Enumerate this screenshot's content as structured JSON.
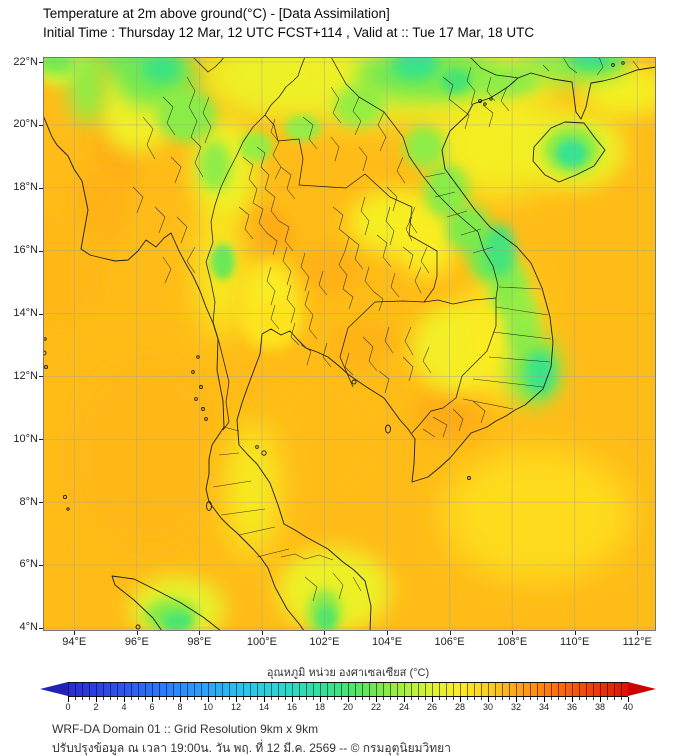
{
  "header": {
    "title": "Temperature at 2m above ground(°C) - [Data Assimilation]",
    "subtitle": "Initial Time : Thursday 12 Mar, 12 UTC FCST+114 , Valid at :: Tue 17 Mar, 18 UTC"
  },
  "footer": {
    "line1": "WRF-DA Domain 01 :: Grid Resolution 9km x 9km",
    "line2": "ปรับปรุงข้อมูล ณ เวลา 19:00น. วัน พฤ. ที่ 12 มี.ค. 2569 -- © กรมอุตุนิยมวิทยา"
  },
  "chart_data": {
    "type": "heatmap",
    "title": "Temperature at 2m above ground(°C) - [Data Assimilation]",
    "axes": {
      "domain": {
        "lon_min": 93.0,
        "lon_max": 112.6,
        "lat_min": 3.9,
        "lat_max": 22.16
      },
      "lon_ticks_deg": [
        94,
        96,
        98,
        100,
        102,
        104,
        106,
        108,
        110,
        112
      ],
      "lon_tick_labels": [
        "94°E",
        "96°E",
        "98°E",
        "100°E",
        "102°E",
        "104°E",
        "106°E",
        "108°E",
        "110°E",
        "112°E"
      ],
      "lat_ticks_deg": [
        22,
        20,
        18,
        16,
        14,
        12,
        10,
        8,
        6,
        4
      ],
      "lat_tick_labels": [
        "22°N",
        "20°N",
        "18°N",
        "16°N",
        "14°N",
        "12°N",
        "10°N",
        "8°N",
        "6°N",
        "4°N"
      ],
      "grid": true,
      "grid_color": "#9aa0a6"
    },
    "colorbar": {
      "label": "อุณหภูมิ หน่วย องศาเซลเซียส (°C)",
      "unit": "°C",
      "min": 0,
      "max": 40,
      "tick_step": 2,
      "tick_labels": [
        "0",
        "2",
        "4",
        "6",
        "8",
        "10",
        "12",
        "14",
        "16",
        "18",
        "20",
        "22",
        "24",
        "26",
        "28",
        "30",
        "32",
        "34",
        "36",
        "38",
        "40"
      ],
      "stops": [
        [
          0,
          "#2a2ad2"
        ],
        [
          2,
          "#2b40e4"
        ],
        [
          4,
          "#2b57f2"
        ],
        [
          6,
          "#2b71fb"
        ],
        [
          8,
          "#2b8cff"
        ],
        [
          10,
          "#29a6fb"
        ],
        [
          12,
          "#28bff2"
        ],
        [
          14,
          "#27cfe2"
        ],
        [
          16,
          "#28dcc4"
        ],
        [
          18,
          "#30e29e"
        ],
        [
          20,
          "#46e472"
        ],
        [
          22,
          "#74e94f"
        ],
        [
          24,
          "#a9f03c"
        ],
        [
          26,
          "#dff42e"
        ],
        [
          28,
          "#fdec20"
        ],
        [
          30,
          "#ffcf1a"
        ],
        [
          32,
          "#ffa815"
        ],
        [
          34,
          "#ff8110"
        ],
        [
          36,
          "#fa5c0b"
        ],
        [
          38,
          "#ef3306"
        ],
        [
          40,
          "#e11002"
        ]
      ],
      "arrow_left_color": "#2222b6",
      "arrow_right_color": "#cf0000"
    },
    "field": {
      "base_temp_c": 31.0,
      "anomalies": [
        [
          95.4,
          19.8,
          0.85,
          1.9,
          31.8
        ],
        [
          94.9,
          17.4,
          0.9,
          1.3,
          31.5
        ],
        [
          93.7,
          15.3,
          1.4,
          1.8,
          31.2
        ],
        [
          96.3,
          9.5,
          2.6,
          3.2,
          31.2
        ],
        [
          100.0,
          16.5,
          1.05,
          0.95,
          31.8
        ],
        [
          102.0,
          15.4,
          1.3,
          0.75,
          31.6
        ],
        [
          100.6,
          14.9,
          0.8,
          0.6,
          31.5
        ],
        [
          103.3,
          13.0,
          1.1,
          0.8,
          31.4
        ],
        [
          101.9,
          10.0,
          1.6,
          2.0,
          31.0
        ],
        [
          106.0,
          10.8,
          1.2,
          0.9,
          31.8
        ],
        [
          104.5,
          12.2,
          0.9,
          0.7,
          31.0
        ],
        [
          104.0,
          21.5,
          6.0,
          1.5,
          27.0
        ],
        [
          100.3,
          21.6,
          2.2,
          1.1,
          27.0
        ],
        [
          98.8,
          18.6,
          1.1,
          1.7,
          27.0
        ],
        [
          98.7,
          15.4,
          0.75,
          2.3,
          27.5
        ],
        [
          100.3,
          14.4,
          1.0,
          1.4,
          27.8
        ],
        [
          100.3,
          13.7,
          0.9,
          0.8,
          28.6
        ],
        [
          104.3,
          16.9,
          1.6,
          1.1,
          27.5
        ],
        [
          105.3,
          16.3,
          1.0,
          1.2,
          27.8
        ],
        [
          106.3,
          12.9,
          1.6,
          1.5,
          27.3
        ],
        [
          107.7,
          13.4,
          1.1,
          2.3,
          28.0
        ],
        [
          107.5,
          19.4,
          2.3,
          1.8,
          27.4
        ],
        [
          110.0,
          19.2,
          1.7,
          1.3,
          27.0
        ],
        [
          111.6,
          21.1,
          1.5,
          0.9,
          27.4
        ],
        [
          99.7,
          8.4,
          0.85,
          2.2,
          27.5
        ],
        [
          102.3,
          5.2,
          1.9,
          1.4,
          27.0
        ],
        [
          97.3,
          4.6,
          1.6,
          1.1,
          26.6
        ],
        [
          108.8,
          7.6,
          3.2,
          2.2,
          29.2
        ],
        [
          93.6,
          21.9,
          1.0,
          0.7,
          26.0
        ],
        [
          96.0,
          20.6,
          1.3,
          1.6,
          27.2
        ],
        [
          96.6,
          21.5,
          1.4,
          1.0,
          22.0
        ],
        [
          95.9,
          22.1,
          1.6,
          0.5,
          21.5
        ],
        [
          97.6,
          20.3,
          1.0,
          0.9,
          22.8
        ],
        [
          94.4,
          21.2,
          0.6,
          1.2,
          23.0
        ],
        [
          93.4,
          22.0,
          0.7,
          0.4,
          21.8
        ],
        [
          98.5,
          18.7,
          0.55,
          0.85,
          23.0
        ],
        [
          98.75,
          15.65,
          0.4,
          0.6,
          21.5
        ],
        [
          99.8,
          19.3,
          0.55,
          0.5,
          23.3
        ],
        [
          101.3,
          19.9,
          0.6,
          0.45,
          23.2
        ],
        [
          103.1,
          20.6,
          0.85,
          0.7,
          23.3
        ],
        [
          104.8,
          21.6,
          1.9,
          0.85,
          22.0
        ],
        [
          106.3,
          21.6,
          1.4,
          0.75,
          22.3
        ],
        [
          107.8,
          21.4,
          1.1,
          0.55,
          23.0
        ],
        [
          109.9,
          21.9,
          1.9,
          0.6,
          23.0
        ],
        [
          110.6,
          22.1,
          1.0,
          0.45,
          20.8
        ],
        [
          105.2,
          19.3,
          0.7,
          0.7,
          23.0
        ],
        [
          105.9,
          17.9,
          0.75,
          0.9,
          22.8
        ],
        [
          106.6,
          16.7,
          0.75,
          0.8,
          22.4
        ],
        [
          107.3,
          15.8,
          0.75,
          0.85,
          22.0
        ],
        [
          107.9,
          14.8,
          0.65,
          0.95,
          22.8
        ],
        [
          108.3,
          13.7,
          0.6,
          1.0,
          23.2
        ],
        [
          108.7,
          12.2,
          0.9,
          1.2,
          22.4
        ],
        [
          109.9,
          19.2,
          0.95,
          0.8,
          22.6
        ],
        [
          97.1,
          4.4,
          0.9,
          0.55,
          22.4
        ],
        [
          102.0,
          4.5,
          0.55,
          0.75,
          22.4
        ],
        [
          96.8,
          21.8,
          0.65,
          0.5,
          19.3
        ],
        [
          104.9,
          21.9,
          0.8,
          0.5,
          19.0
        ],
        [
          106.2,
          21.4,
          0.5,
          0.4,
          20.0
        ],
        [
          107.6,
          16.0,
          0.5,
          0.9,
          19.6
        ],
        [
          108.9,
          12.1,
          0.5,
          0.75,
          19.0
        ],
        [
          109.9,
          19.1,
          0.5,
          0.45,
          18.6
        ],
        [
          110.5,
          22.1,
          0.55,
          0.3,
          19.2
        ],
        [
          97.3,
          4.2,
          0.5,
          0.3,
          20.2
        ],
        [
          102.05,
          4.3,
          0.3,
          0.4,
          20.4
        ],
        [
          105.0,
          22.15,
          0.5,
          0.3,
          18.8
        ]
      ]
    }
  }
}
